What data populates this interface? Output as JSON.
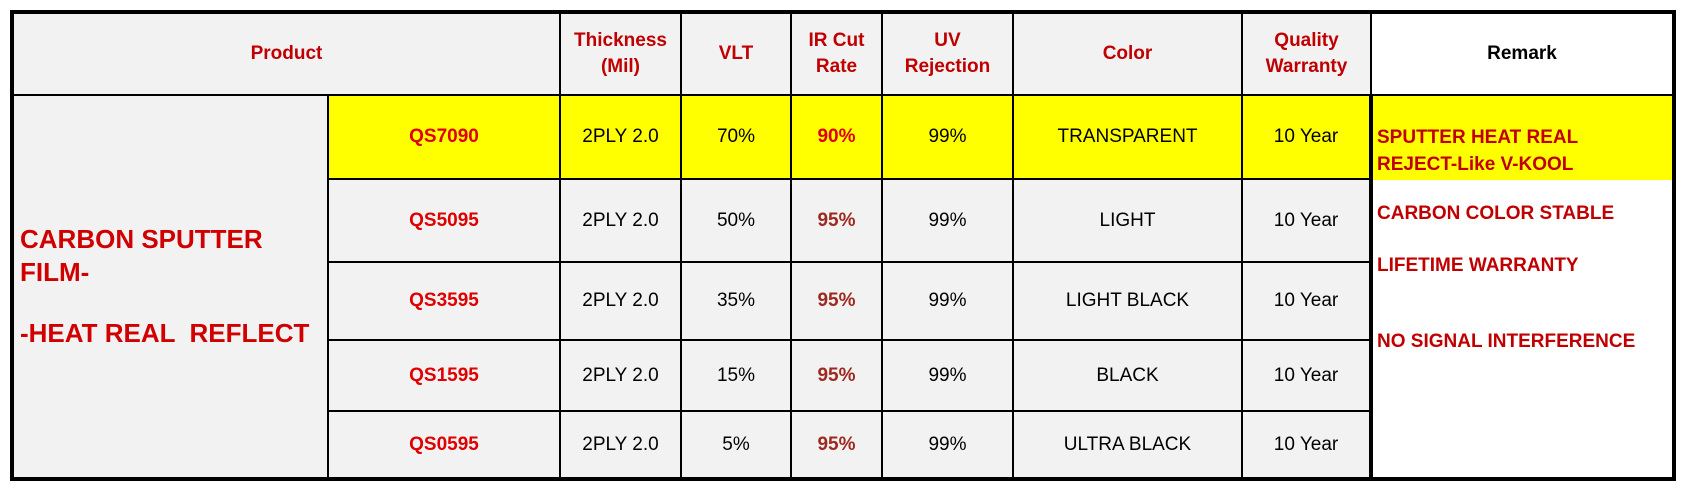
{
  "header": [
    [
      "Product"
    ],
    [
      "Thickness",
      "(Mil)"
    ],
    [
      "VLT"
    ],
    [
      "IR Cut",
      "Rate"
    ],
    [
      "UV",
      "Rejection"
    ],
    [
      "Color"
    ],
    [
      "Quality",
      "Warranty"
    ],
    [
      "Remark"
    ]
  ],
  "group_label": [
    "CARBON SPUTTER",
    "FILM-",
    "-HEAT REAL  REFLECT"
  ],
  "rows": [
    [
      "QS7090",
      "2PLY 2.0",
      "70%",
      "90%",
      "99%",
      "TRANSPARENT",
      "10 Year"
    ],
    [
      "QS5095",
      "2PLY 2.0",
      "50%",
      "95%",
      "99%",
      "LIGHT",
      "10 Year"
    ],
    [
      "QS3595",
      "2PLY 2.0",
      "35%",
      "95%",
      "99%",
      "LIGHT BLACK",
      "10 Year"
    ],
    [
      "QS1595",
      "2PLY 2.0",
      "15%",
      "95%",
      "99%",
      "BLACK",
      "10 Year"
    ],
    [
      "QS0595",
      "2PLY 2.0",
      "5%",
      "95%",
      "99%",
      "ULTRA BLACK",
      "10 Year"
    ]
  ],
  "remarks": [
    [
      "SPUTTER HEAT REAL",
      "REJECT-Like V-KOOL"
    ],
    [
      "CARBON COLOR STABLE"
    ],
    [
      "LIFETIME WARRANTY"
    ],
    [
      "NO SIGNAL INTERFERENCE"
    ]
  ]
}
